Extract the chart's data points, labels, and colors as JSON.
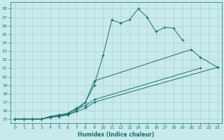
{
  "bg_color": "#c8eaea",
  "line_color": "#1a7070",
  "grid_color": "#a0cccc",
  "xlabel": "Humidex (Indice chaleur)",
  "ylim": [
    14.5,
    28.8
  ],
  "xlim": [
    -0.5,
    23.5
  ],
  "yticks": [
    15,
    16,
    17,
    18,
    19,
    20,
    21,
    22,
    23,
    24,
    25,
    26,
    27,
    28
  ],
  "xticks": [
    0,
    1,
    2,
    3,
    4,
    5,
    6,
    7,
    8,
    9,
    10,
    11,
    12,
    13,
    14,
    15,
    16,
    17,
    18,
    19,
    20,
    21,
    22,
    23
  ],
  "series1_x": [
    0,
    1,
    2,
    3,
    4,
    5,
    6,
    7,
    8,
    9,
    10,
    11,
    12,
    13,
    14,
    15,
    16,
    17,
    18,
    19
  ],
  "series1_y": [
    15,
    15,
    15,
    15,
    15.3,
    15.5,
    15.5,
    16.0,
    17.0,
    19.0,
    22.5,
    26.7,
    26.3,
    26.7,
    28.0,
    27.0,
    25.3,
    25.8,
    25.7,
    24.3
  ],
  "series2_x": [
    0,
    1,
    2,
    3,
    4,
    5,
    6,
    7,
    8,
    9,
    20,
    21,
    23
  ],
  "series2_y": [
    15,
    15,
    15,
    15,
    15.3,
    15.5,
    15.7,
    16.3,
    17.0,
    19.5,
    23.2,
    22.3,
    21.1
  ],
  "series3_x": [
    0,
    1,
    2,
    3,
    4,
    5,
    6,
    7,
    8,
    9,
    21
  ],
  "series3_y": [
    15,
    15,
    15,
    15,
    15.3,
    15.4,
    15.6,
    16.2,
    16.6,
    17.3,
    21.0
  ],
  "series4_x": [
    0,
    1,
    2,
    3,
    4,
    5,
    6,
    7,
    8,
    9,
    23
  ],
  "series4_y": [
    15,
    15,
    15,
    15,
    15.2,
    15.3,
    15.5,
    15.9,
    16.3,
    17.0,
    21.1
  ]
}
